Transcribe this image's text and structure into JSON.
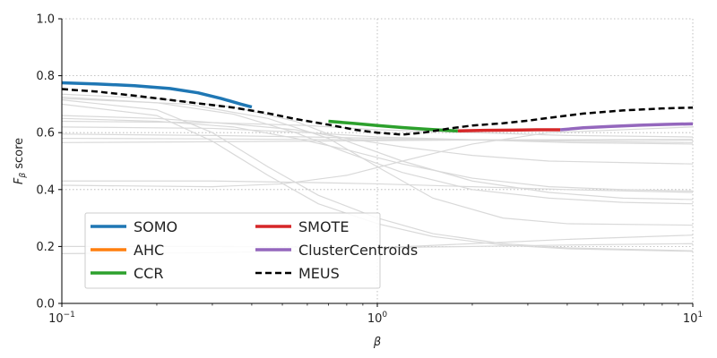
{
  "chart_data": {
    "type": "line",
    "title": "",
    "xlabel": "β",
    "ylabel_main": "F",
    "ylabel_sub": "β",
    "ylabel_rest": " score",
    "xscale": "log",
    "xlim": [
      0.1,
      10
    ],
    "ylim": [
      0,
      1
    ],
    "x_ticks": [
      {
        "value": 0.1,
        "base": "10",
        "exp": "−1"
      },
      {
        "value": 1,
        "base": "10",
        "exp": "0"
      },
      {
        "value": 10,
        "base": "10",
        "exp": "1"
      }
    ],
    "y_ticks": [
      {
        "value": 0.0,
        "label": "0.0"
      },
      {
        "value": 0.2,
        "label": "0.2"
      },
      {
        "value": 0.4,
        "label": "0.4"
      },
      {
        "value": 0.6,
        "label": "0.6"
      },
      {
        "value": 0.8,
        "label": "0.8"
      },
      {
        "value": 1.0,
        "label": "1.0"
      }
    ],
    "grid": true,
    "legend_position": "lower-left",
    "legend": [
      {
        "name": "SOMO",
        "color": "#1f77b4",
        "style": "solid"
      },
      {
        "name": "AHC",
        "color": "#ff7f0e",
        "style": "solid"
      },
      {
        "name": "CCR",
        "color": "#2ca02c",
        "style": "solid"
      },
      {
        "name": "SMOTE",
        "color": "#d62728",
        "style": "solid"
      },
      {
        "name": "ClusterCentroids",
        "color": "#9467bd",
        "style": "solid"
      },
      {
        "name": "MEUS",
        "color": "#000000",
        "style": "dashed"
      }
    ],
    "series": [
      {
        "name": "SOMO",
        "color": "#1f77b4",
        "width": 3.5,
        "dash": "",
        "x": [
          0.1,
          0.13,
          0.17,
          0.22,
          0.27,
          0.32,
          0.37,
          0.4
        ],
        "y": [
          0.775,
          0.771,
          0.765,
          0.755,
          0.74,
          0.72,
          0.7,
          0.69
        ]
      },
      {
        "name": "CCR",
        "color": "#2ca02c",
        "width": 3.5,
        "dash": "",
        "x": [
          0.7,
          0.85,
          1.0,
          1.2,
          1.4,
          1.6,
          1.8
        ],
        "y": [
          0.64,
          0.632,
          0.625,
          0.618,
          0.613,
          0.609,
          0.606
        ]
      },
      {
        "name": "SMOTE",
        "color": "#d62728",
        "width": 3.5,
        "dash": "",
        "x": [
          1.8,
          2.2,
          2.7,
          3.2,
          3.8
        ],
        "y": [
          0.606,
          0.608,
          0.609,
          0.61,
          0.61
        ]
      },
      {
        "name": "ClusterCentroids",
        "color": "#9467bd",
        "width": 3.5,
        "dash": "",
        "x": [
          3.8,
          4.5,
          5.5,
          6.8,
          8.2,
          10
        ],
        "y": [
          0.61,
          0.617,
          0.622,
          0.626,
          0.629,
          0.631
        ]
      },
      {
        "name": "MEUS",
        "color": "#000000",
        "width": 2.5,
        "dash": "7,4",
        "x": [
          0.1,
          0.13,
          0.17,
          0.22,
          0.27,
          0.35,
          0.45,
          0.55,
          0.7,
          0.85,
          1.0,
          1.2,
          1.4,
          1.7,
          2.0,
          2.5,
          3.0,
          3.5,
          4.5,
          6.0,
          8.0,
          10.0
        ],
        "y": [
          0.753,
          0.744,
          0.73,
          0.715,
          0.703,
          0.688,
          0.668,
          0.648,
          0.628,
          0.61,
          0.6,
          0.593,
          0.6,
          0.615,
          0.625,
          0.633,
          0.642,
          0.652,
          0.667,
          0.678,
          0.685,
          0.688
        ]
      }
    ],
    "background_series": [
      {
        "x": [
          0.1,
          0.2,
          0.35,
          0.55,
          0.8,
          1.2,
          2,
          3.5,
          6,
          10
        ],
        "y": [
          0.735,
          0.72,
          0.69,
          0.64,
          0.57,
          0.5,
          0.43,
          0.39,
          0.37,
          0.365
        ]
      },
      {
        "x": [
          0.1,
          0.2,
          0.35,
          0.55,
          0.8,
          1.2,
          2,
          3.5,
          6,
          10
        ],
        "y": [
          0.725,
          0.705,
          0.665,
          0.6,
          0.53,
          0.46,
          0.4,
          0.37,
          0.355,
          0.35
        ]
      },
      {
        "x": [
          0.1,
          0.2,
          0.3,
          0.45,
          0.65,
          1.0,
          1.5,
          2.5,
          4,
          10
        ],
        "y": [
          0.715,
          0.68,
          0.6,
          0.48,
          0.38,
          0.3,
          0.245,
          0.21,
          0.195,
          0.185
        ]
      },
      {
        "x": [
          0.1,
          0.2,
          0.3,
          0.45,
          0.65,
          1.0,
          1.5,
          2.5,
          4,
          10
        ],
        "y": [
          0.7,
          0.66,
          0.57,
          0.45,
          0.35,
          0.28,
          0.235,
          0.205,
          0.192,
          0.183
        ]
      },
      {
        "x": [
          0.1,
          0.2,
          0.35,
          0.55,
          0.8,
          1.2,
          2,
          3.5,
          6,
          10
        ],
        "y": [
          0.66,
          0.65,
          0.63,
          0.61,
          0.58,
          0.55,
          0.52,
          0.5,
          0.495,
          0.49
        ]
      },
      {
        "x": [
          0.1,
          0.3,
          0.6,
          1,
          2,
          4,
          10
        ],
        "y": [
          0.64,
          0.635,
          0.625,
          0.61,
          0.6,
          0.59,
          0.585
        ]
      },
      {
        "x": [
          0.1,
          0.3,
          0.6,
          1,
          2,
          4,
          10
        ],
        "y": [
          0.62,
          0.615,
          0.6,
          0.585,
          0.575,
          0.565,
          0.56
        ]
      },
      {
        "x": [
          0.1,
          0.3,
          0.6,
          1,
          2,
          4,
          10
        ],
        "y": [
          0.595,
          0.59,
          0.585,
          0.58,
          0.575,
          0.57,
          0.565
        ]
      },
      {
        "x": [
          0.1,
          0.3,
          0.6,
          1,
          2,
          4,
          10
        ],
        "y": [
          0.58,
          0.578,
          0.576,
          0.575,
          0.575,
          0.574,
          0.574
        ]
      },
      {
        "x": [
          0.1,
          0.3,
          0.6,
          1,
          2,
          4,
          10
        ],
        "y": [
          0.565,
          0.568,
          0.57,
          0.572,
          0.574,
          0.575,
          0.576
        ]
      },
      {
        "x": [
          0.1,
          0.2,
          0.35,
          0.55,
          0.8,
          1.2,
          2,
          3.5,
          6,
          10
        ],
        "y": [
          0.65,
          0.64,
          0.62,
          0.58,
          0.54,
          0.49,
          0.44,
          0.41,
          0.4,
          0.395
        ]
      },
      {
        "x": [
          0.1,
          0.25,
          0.45,
          0.7,
          1.0,
          1.5,
          2.5,
          4,
          10
        ],
        "y": [
          0.72,
          0.7,
          0.65,
          0.58,
          0.48,
          0.37,
          0.3,
          0.28,
          0.275
        ]
      },
      {
        "x": [
          0.1,
          0.3,
          0.5,
          0.8,
          1.2,
          2,
          3.5,
          10
        ],
        "y": [
          0.415,
          0.41,
          0.42,
          0.45,
          0.5,
          0.56,
          0.6,
          0.62
        ]
      },
      {
        "x": [
          0.1,
          0.3,
          0.6,
          1,
          2,
          4,
          10
        ],
        "y": [
          0.43,
          0.43,
          0.425,
          0.42,
          0.41,
          0.4,
          0.39
        ]
      },
      {
        "x": [
          0.1,
          0.3,
          0.6,
          1,
          2,
          4,
          10
        ],
        "y": [
          0.175,
          0.178,
          0.185,
          0.195,
          0.21,
          0.225,
          0.24
        ]
      },
      {
        "x": [
          0.1,
          0.3,
          0.6,
          1,
          2,
          4,
          10
        ],
        "y": [
          0.2,
          0.2,
          0.198,
          0.196,
          0.2,
          0.205,
          0.21
        ]
      }
    ]
  }
}
